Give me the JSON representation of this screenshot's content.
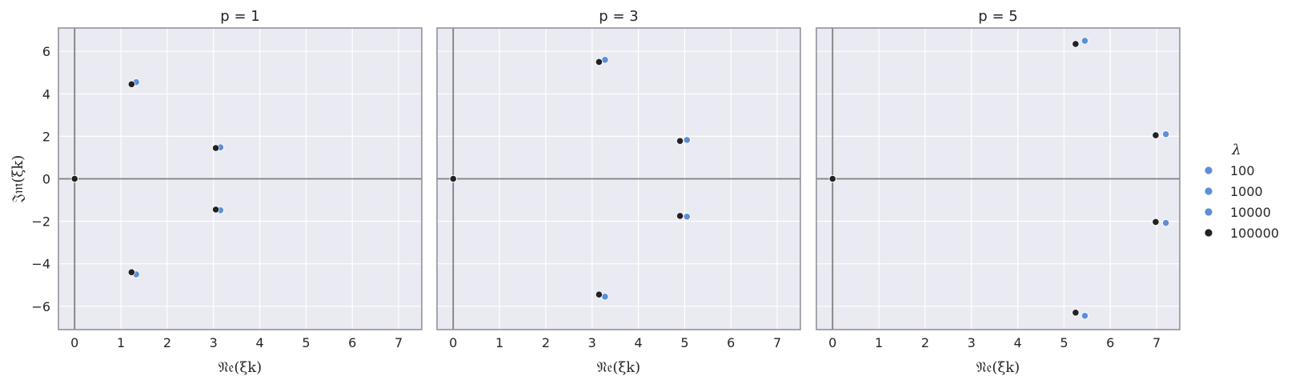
{
  "chart_data": [
    {
      "type": "scatter",
      "title": "p = 1",
      "xlabel": "𝔑𝔢(ξk)",
      "ylabel": "𝔍𝔪(ξk)",
      "xlim": [
        -0.35,
        7.5
      ],
      "ylim": [
        -7.1,
        7.1
      ],
      "xticks": [
        "0",
        "1",
        "2",
        "3",
        "4",
        "5",
        "6",
        "7"
      ],
      "yticks": [
        "−6",
        "−4",
        "−2",
        "0",
        "2",
        "4",
        "6"
      ],
      "grid": true,
      "series": [
        {
          "name": "100",
          "color": "#5d8fd8",
          "points": [
            [
              0,
              0
            ],
            [
              1.33,
              4.55
            ],
            [
              3.15,
              1.48
            ],
            [
              3.15,
              -1.48
            ],
            [
              1.33,
              -4.5
            ]
          ]
        },
        {
          "name": "1000",
          "color": "#5d8fd8",
          "points": [
            [
              0,
              0
            ],
            [
              1.33,
              4.55
            ],
            [
              3.15,
              1.48
            ],
            [
              3.15,
              -1.48
            ],
            [
              1.33,
              -4.5
            ]
          ]
        },
        {
          "name": "10000",
          "color": "#5d8fd8",
          "points": [
            [
              0,
              0
            ],
            [
              1.33,
              4.55
            ],
            [
              3.15,
              1.48
            ],
            [
              3.15,
              -1.48
            ],
            [
              1.33,
              -4.5
            ]
          ]
        },
        {
          "name": "100000",
          "color": "#222222",
          "points": [
            [
              0,
              0
            ],
            [
              1.23,
              4.45
            ],
            [
              3.05,
              1.45
            ],
            [
              3.05,
              -1.45
            ],
            [
              1.23,
              -4.4
            ]
          ]
        }
      ]
    },
    {
      "type": "scatter",
      "title": "p = 3",
      "xlabel": "𝔑𝔢(ξk)",
      "ylabel": "",
      "xlim": [
        -0.35,
        7.5
      ],
      "ylim": [
        -7.1,
        7.1
      ],
      "xticks": [
        "0",
        "1",
        "2",
        "3",
        "4",
        "5",
        "6",
        "7"
      ],
      "yticks": [],
      "grid": true,
      "series": [
        {
          "name": "100",
          "color": "#5d8fd8",
          "points": [
            [
              0,
              0
            ],
            [
              3.28,
              5.6
            ],
            [
              5.05,
              1.83
            ],
            [
              5.05,
              -1.78
            ],
            [
              3.28,
              -5.55
            ]
          ]
        },
        {
          "name": "1000",
          "color": "#5d8fd8",
          "points": [
            [
              0,
              0
            ],
            [
              3.28,
              5.6
            ],
            [
              5.05,
              1.83
            ],
            [
              5.05,
              -1.78
            ],
            [
              3.28,
              -5.55
            ]
          ]
        },
        {
          "name": "10000",
          "color": "#5d8fd8",
          "points": [
            [
              0,
              0
            ],
            [
              3.28,
              5.6
            ],
            [
              5.05,
              1.83
            ],
            [
              5.05,
              -1.78
            ],
            [
              3.28,
              -5.55
            ]
          ]
        },
        {
          "name": "100000",
          "color": "#222222",
          "points": [
            [
              0,
              0
            ],
            [
              3.15,
              5.5
            ],
            [
              4.9,
              1.78
            ],
            [
              4.9,
              -1.75
            ],
            [
              3.15,
              -5.45
            ]
          ]
        }
      ]
    },
    {
      "type": "scatter",
      "title": "p = 5",
      "xlabel": "𝔑𝔢(ξk)",
      "ylabel": "",
      "xlim": [
        -0.35,
        7.5
      ],
      "ylim": [
        -7.1,
        7.1
      ],
      "xticks": [
        "0",
        "1",
        "2",
        "3",
        "4",
        "5",
        "6",
        "7"
      ],
      "yticks": [],
      "grid": true,
      "series": [
        {
          "name": "100",
          "color": "#5d8fd8",
          "points": [
            [
              0,
              0
            ],
            [
              5.45,
              6.5
            ],
            [
              7.2,
              2.1
            ],
            [
              7.2,
              -2.08
            ],
            [
              5.45,
              -6.45
            ]
          ]
        },
        {
          "name": "1000",
          "color": "#5d8fd8",
          "points": [
            [
              0,
              0
            ],
            [
              5.45,
              6.5
            ],
            [
              7.2,
              2.1
            ],
            [
              7.2,
              -2.08
            ],
            [
              5.45,
              -6.45
            ]
          ]
        },
        {
          "name": "10000",
          "color": "#5d8fd8",
          "points": [
            [
              0,
              0
            ],
            [
              5.45,
              6.5
            ],
            [
              7.2,
              2.1
            ],
            [
              7.2,
              -2.08
            ],
            [
              5.45,
              -6.45
            ]
          ]
        },
        {
          "name": "100000",
          "color": "#222222",
          "points": [
            [
              0,
              0
            ],
            [
              5.25,
              6.35
            ],
            [
              6.98,
              2.05
            ],
            [
              6.98,
              -2.03
            ],
            [
              5.25,
              -6.3
            ]
          ]
        }
      ]
    }
  ],
  "legend": {
    "title": "λ",
    "placement": "right",
    "entries": [
      {
        "label": "100",
        "color": "#5d8fd8"
      },
      {
        "label": "1000",
        "color": "#5d8fd8"
      },
      {
        "label": "10000",
        "color": "#5d8fd8"
      },
      {
        "label": "100000",
        "color": "#222222"
      }
    ]
  }
}
